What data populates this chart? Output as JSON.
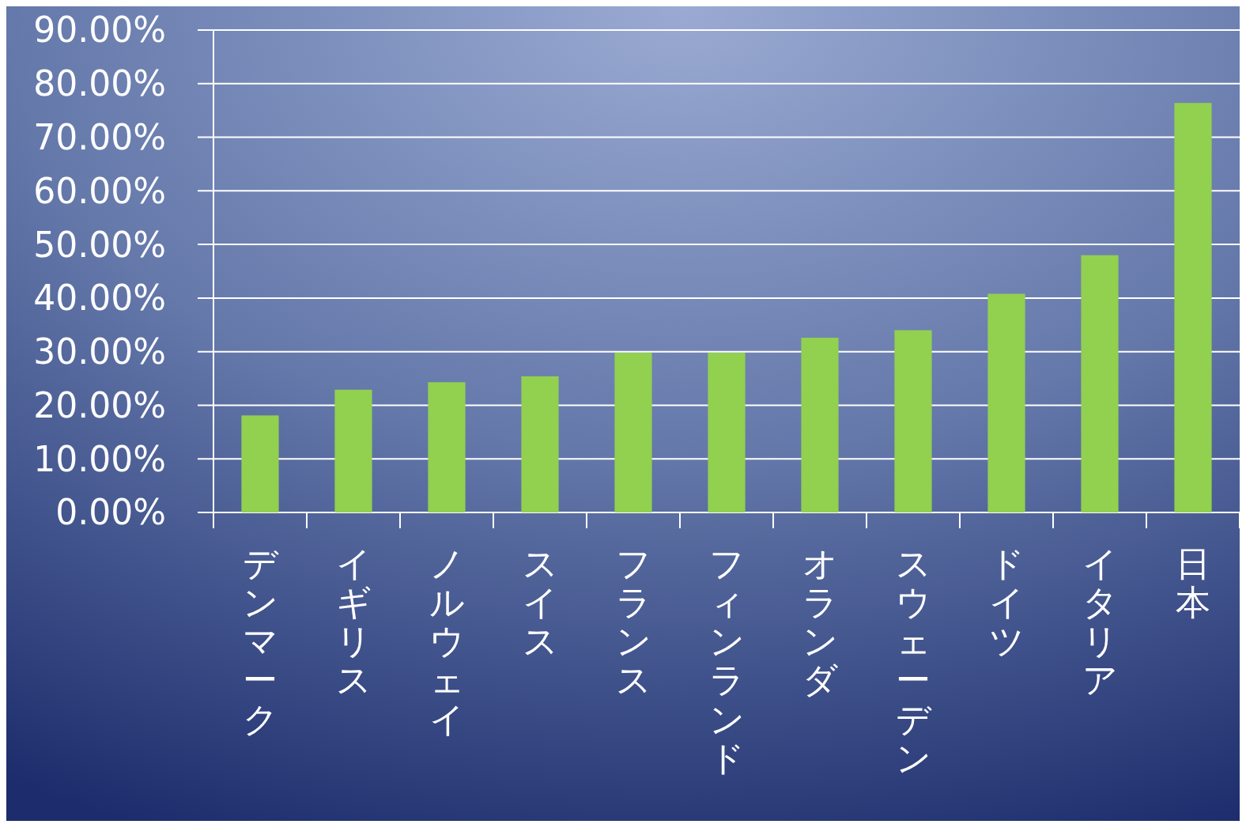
{
  "chart_data": {
    "type": "bar",
    "categories": [
      "デンマーク",
      "イギリス",
      "ノルウェイ",
      "スイス",
      "フランス",
      "フィンランド",
      "オランダ",
      "スウェーデン",
      "ドイツ",
      "イタリア",
      "日本"
    ],
    "values": [
      18.1,
      22.9,
      24.3,
      25.4,
      29.8,
      29.8,
      32.6,
      34.0,
      40.8,
      48.0,
      76.4
    ],
    "color": "#92d050",
    "ylim": [
      0,
      90
    ],
    "yticks": [
      {
        "value": 0,
        "label": "0.00%"
      },
      {
        "value": 10,
        "label": "10.00%"
      },
      {
        "value": 20,
        "label": "20.00%"
      },
      {
        "value": 30,
        "label": "30.00%"
      },
      {
        "value": 40,
        "label": "40.00%"
      },
      {
        "value": 50,
        "label": "50.00%"
      },
      {
        "value": 60,
        "label": "60.00%"
      },
      {
        "value": 70,
        "label": "70.00%"
      },
      {
        "value": 80,
        "label": "80.00%"
      },
      {
        "value": 90,
        "label": "90.00%"
      }
    ],
    "grid": true
  }
}
